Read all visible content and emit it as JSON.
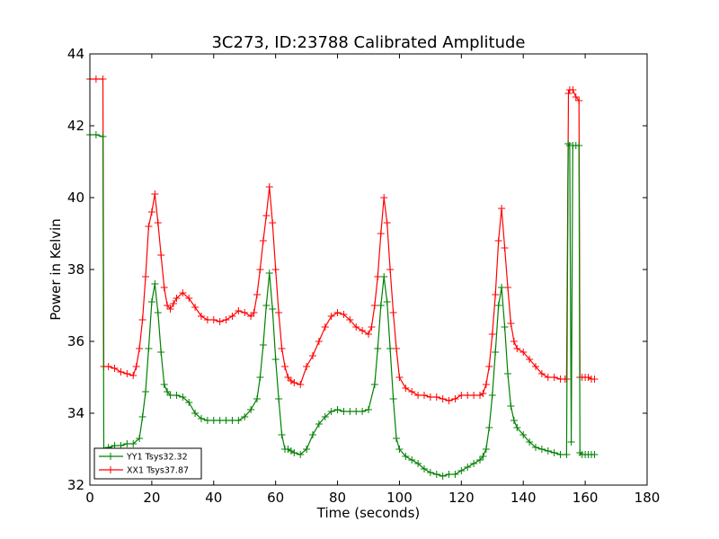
{
  "chart_data": {
    "type": "line",
    "title": "3C273, ID:23788 Calibrated Amplitude",
    "xlabel": "Time (seconds)",
    "ylabel": "Power in Kelvin",
    "xlim": [
      0,
      180
    ],
    "ylim": [
      32,
      44
    ],
    "xticks": [
      0,
      20,
      40,
      60,
      80,
      100,
      120,
      140,
      160,
      180
    ],
    "yticks": [
      32,
      34,
      36,
      38,
      40,
      42,
      44
    ],
    "grid": false,
    "legend_position": "lower-left",
    "marker": "plus",
    "series": [
      {
        "name": "XX1 Tsys37.87",
        "color": "#ff0000",
        "points": [
          [
            0,
            43.3
          ],
          [
            2,
            43.3
          ],
          [
            4.2,
            43.3
          ],
          [
            4.5,
            35.3
          ],
          [
            6,
            35.3
          ],
          [
            8,
            35.25
          ],
          [
            10,
            35.15
          ],
          [
            12,
            35.1
          ],
          [
            14,
            35.05
          ],
          [
            15,
            35.3
          ],
          [
            16,
            35.8
          ],
          [
            17,
            36.6
          ],
          [
            18,
            37.8
          ],
          [
            19,
            39.2
          ],
          [
            20,
            39.6
          ],
          [
            21,
            40.1
          ],
          [
            22,
            39.3
          ],
          [
            23,
            38.4
          ],
          [
            24,
            37.5
          ],
          [
            25,
            37.0
          ],
          [
            26,
            36.9
          ],
          [
            27,
            37.05
          ],
          [
            28,
            37.2
          ],
          [
            30,
            37.35
          ],
          [
            32,
            37.2
          ],
          [
            34,
            36.95
          ],
          [
            36,
            36.7
          ],
          [
            38,
            36.6
          ],
          [
            40,
            36.6
          ],
          [
            42,
            36.55
          ],
          [
            44,
            36.6
          ],
          [
            46,
            36.7
          ],
          [
            48,
            36.85
          ],
          [
            50,
            36.8
          ],
          [
            52,
            36.7
          ],
          [
            53,
            36.8
          ],
          [
            54,
            37.3
          ],
          [
            55,
            38.0
          ],
          [
            56,
            38.8
          ],
          [
            57,
            39.5
          ],
          [
            58,
            40.3
          ],
          [
            59,
            39.3
          ],
          [
            60,
            38.0
          ],
          [
            61,
            36.8
          ],
          [
            62,
            35.8
          ],
          [
            63,
            35.3
          ],
          [
            64,
            35.0
          ],
          [
            65,
            34.9
          ],
          [
            66,
            34.85
          ],
          [
            68,
            34.8
          ],
          [
            70,
            35.3
          ],
          [
            72,
            35.6
          ],
          [
            74,
            36.0
          ],
          [
            76,
            36.4
          ],
          [
            78,
            36.7
          ],
          [
            80,
            36.8
          ],
          [
            82,
            36.75
          ],
          [
            84,
            36.6
          ],
          [
            86,
            36.4
          ],
          [
            88,
            36.3
          ],
          [
            90,
            36.2
          ],
          [
            91,
            36.4
          ],
          [
            92,
            37.0
          ],
          [
            93,
            37.8
          ],
          [
            94,
            39.0
          ],
          [
            95,
            40.0
          ],
          [
            96,
            39.3
          ],
          [
            97,
            38.0
          ],
          [
            98,
            36.8
          ],
          [
            99,
            35.8
          ],
          [
            100,
            35.0
          ],
          [
            102,
            34.7
          ],
          [
            104,
            34.6
          ],
          [
            106,
            34.5
          ],
          [
            108,
            34.5
          ],
          [
            110,
            34.45
          ],
          [
            112,
            34.45
          ],
          [
            114,
            34.4
          ],
          [
            116,
            34.35
          ],
          [
            118,
            34.4
          ],
          [
            120,
            34.5
          ],
          [
            122,
            34.5
          ],
          [
            124,
            34.5
          ],
          [
            126,
            34.5
          ],
          [
            127,
            34.55
          ],
          [
            128,
            34.8
          ],
          [
            129,
            35.3
          ],
          [
            130,
            36.2
          ],
          [
            131,
            37.3
          ],
          [
            132,
            38.8
          ],
          [
            133,
            39.7
          ],
          [
            134,
            38.6
          ],
          [
            135,
            37.5
          ],
          [
            136,
            36.5
          ],
          [
            137,
            36.0
          ],
          [
            138,
            35.8
          ],
          [
            140,
            35.7
          ],
          [
            142,
            35.5
          ],
          [
            144,
            35.3
          ],
          [
            146,
            35.1
          ],
          [
            148,
            35.0
          ],
          [
            150,
            35.0
          ],
          [
            152,
            34.95
          ],
          [
            153.5,
            34.95
          ],
          [
            154,
            34.95
          ],
          [
            154.6,
            42.9
          ],
          [
            155,
            43.0
          ],
          [
            156,
            43.0
          ],
          [
            157,
            42.8
          ],
          [
            158,
            42.7
          ],
          [
            158.3,
            35.0
          ],
          [
            159,
            35.0
          ],
          [
            160,
            35.0
          ],
          [
            161,
            35.0
          ],
          [
            162,
            34.95
          ],
          [
            163,
            34.95
          ]
        ]
      },
      {
        "name": "YY1 Tsys32.32",
        "color": "#008000",
        "points": [
          [
            0,
            41.75
          ],
          [
            2,
            41.75
          ],
          [
            4.2,
            41.7
          ],
          [
            4.5,
            33.0
          ],
          [
            6,
            33.05
          ],
          [
            8,
            33.1
          ],
          [
            10,
            33.1
          ],
          [
            12,
            33.15
          ],
          [
            14,
            33.15
          ],
          [
            16,
            33.3
          ],
          [
            17,
            33.9
          ],
          [
            18,
            34.6
          ],
          [
            19,
            35.8
          ],
          [
            20,
            37.1
          ],
          [
            21,
            37.6
          ],
          [
            22,
            36.8
          ],
          [
            23,
            35.7
          ],
          [
            24,
            34.8
          ],
          [
            25,
            34.6
          ],
          [
            26,
            34.5
          ],
          [
            28,
            34.5
          ],
          [
            30,
            34.45
          ],
          [
            32,
            34.3
          ],
          [
            34,
            34.0
          ],
          [
            36,
            33.85
          ],
          [
            38,
            33.8
          ],
          [
            40,
            33.8
          ],
          [
            42,
            33.8
          ],
          [
            44,
            33.8
          ],
          [
            46,
            33.8
          ],
          [
            48,
            33.8
          ],
          [
            50,
            33.9
          ],
          [
            52,
            34.1
          ],
          [
            54,
            34.4
          ],
          [
            55,
            35.0
          ],
          [
            56,
            35.9
          ],
          [
            57,
            37.0
          ],
          [
            58,
            37.9
          ],
          [
            59,
            36.9
          ],
          [
            60,
            35.5
          ],
          [
            61,
            34.4
          ],
          [
            62,
            33.4
          ],
          [
            63,
            33.0
          ],
          [
            64,
            33.0
          ],
          [
            65,
            32.95
          ],
          [
            66,
            32.9
          ],
          [
            68,
            32.85
          ],
          [
            70,
            33.0
          ],
          [
            72,
            33.4
          ],
          [
            74,
            33.7
          ],
          [
            76,
            33.9
          ],
          [
            78,
            34.05
          ],
          [
            80,
            34.1
          ],
          [
            82,
            34.05
          ],
          [
            84,
            34.05
          ],
          [
            86,
            34.05
          ],
          [
            88,
            34.05
          ],
          [
            90,
            34.1
          ],
          [
            92,
            34.8
          ],
          [
            93,
            35.8
          ],
          [
            94,
            37.0
          ],
          [
            95,
            37.8
          ],
          [
            96,
            37.1
          ],
          [
            97,
            35.8
          ],
          [
            98,
            34.4
          ],
          [
            99,
            33.3
          ],
          [
            100,
            33.0
          ],
          [
            102,
            32.8
          ],
          [
            104,
            32.7
          ],
          [
            106,
            32.6
          ],
          [
            108,
            32.45
          ],
          [
            110,
            32.35
          ],
          [
            112,
            32.3
          ],
          [
            114,
            32.25
          ],
          [
            116,
            32.3
          ],
          [
            118,
            32.3
          ],
          [
            120,
            32.4
          ],
          [
            122,
            32.5
          ],
          [
            124,
            32.6
          ],
          [
            126,
            32.7
          ],
          [
            127,
            32.8
          ],
          [
            128,
            33.0
          ],
          [
            129,
            33.6
          ],
          [
            130,
            34.5
          ],
          [
            131,
            35.7
          ],
          [
            132,
            37.0
          ],
          [
            133,
            37.5
          ],
          [
            134,
            36.4
          ],
          [
            135,
            35.1
          ],
          [
            136,
            34.2
          ],
          [
            137,
            33.8
          ],
          [
            138,
            33.6
          ],
          [
            140,
            33.4
          ],
          [
            142,
            33.2
          ],
          [
            144,
            33.05
          ],
          [
            146,
            33.0
          ],
          [
            148,
            32.95
          ],
          [
            150,
            32.9
          ],
          [
            152,
            32.85
          ],
          [
            154,
            32.85
          ],
          [
            154.5,
            41.5
          ],
          [
            155,
            41.45
          ],
          [
            155.5,
            33.2
          ],
          [
            156,
            41.45
          ],
          [
            157,
            41.45
          ],
          [
            158,
            41.45
          ],
          [
            158.3,
            32.9
          ],
          [
            159,
            32.85
          ],
          [
            160,
            32.85
          ],
          [
            161,
            32.85
          ],
          [
            162,
            32.85
          ],
          [
            163,
            32.85
          ]
        ]
      }
    ]
  }
}
